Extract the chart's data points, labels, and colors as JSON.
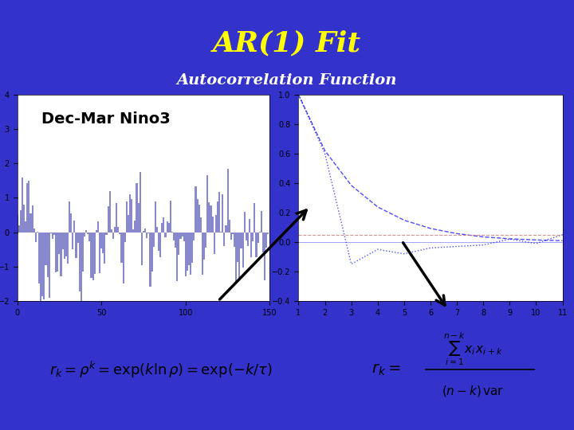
{
  "title": "AR(1) Fit",
  "subtitle": "Autocorrelation Function",
  "bg_color": "#3333CC",
  "title_color": "#FFFF00",
  "subtitle_color": "#FFFFFF",
  "left_plot_label": "Dec-Mar Nino3",
  "left_plot_bg": "#FFFFFF",
  "right_plot_bg": "#FFFFFF",
  "left_xlim": [
    0,
    150
  ],
  "left_ylim": [
    -2,
    4
  ],
  "left_yticks": [
    -2,
    -1,
    0,
    1,
    2,
    3,
    4
  ],
  "left_xticks": [
    0,
    50,
    100,
    150
  ],
  "right_xlim": [
    1,
    11
  ],
  "right_ylim": [
    -0.4,
    1.0
  ],
  "right_yticks": [
    -0.4,
    -0.2,
    0,
    0.2,
    0.4,
    0.6,
    0.8,
    1.0
  ],
  "right_xticks": [
    1,
    2,
    3,
    4,
    5,
    6,
    7,
    8,
    9,
    10,
    11
  ],
  "acf_ar1": [
    1.0,
    0.62,
    0.384,
    0.238,
    0.148,
    0.092,
    0.057,
    0.035,
    0.022,
    0.014,
    0.009
  ],
  "acf_data": [
    1.0,
    0.6,
    -0.15,
    -0.05,
    -0.08,
    -0.04,
    -0.03,
    -0.02,
    0.02,
    -0.01,
    0.05
  ],
  "conf_line": 0.05,
  "formula_box_color": "#CCCCFF",
  "formula_text_color": "#000000",
  "rk_formula_box_color": "#CCCCFF"
}
